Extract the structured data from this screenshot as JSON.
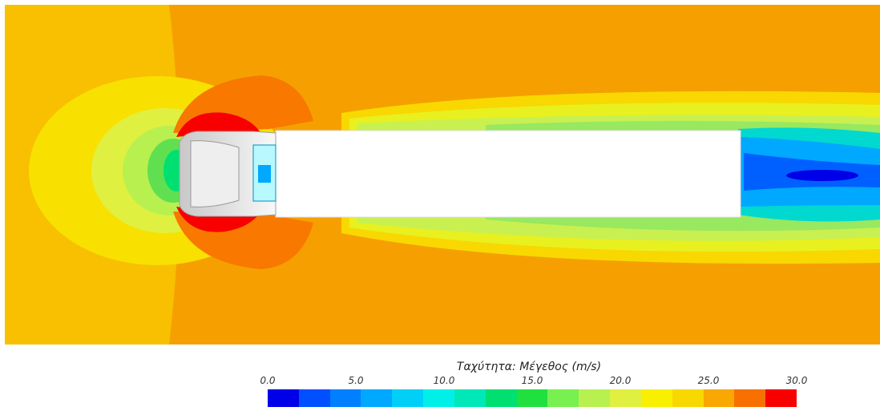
{
  "legend": {
    "title": "Ταχύτητα: Μέγεθος (m/s)",
    "ticks": [
      "0.0",
      "5.0",
      "10.0",
      "15.0",
      "20.0",
      "25.0",
      "30.0"
    ],
    "min": 0.0,
    "max": 30.0,
    "swatches": [
      "#0000e8",
      "#0050ff",
      "#0080ff",
      "#00a8ff",
      "#00d0f8",
      "#00f0e8",
      "#00e8b8",
      "#00e070",
      "#20e040",
      "#78f050",
      "#b8f050",
      "#e0f040",
      "#f8f000",
      "#f8d800",
      "#f8a800",
      "#f87000",
      "#f80000"
    ]
  },
  "colors": {
    "background_flow": "#f5a000",
    "truck_body": "#ffffff"
  }
}
